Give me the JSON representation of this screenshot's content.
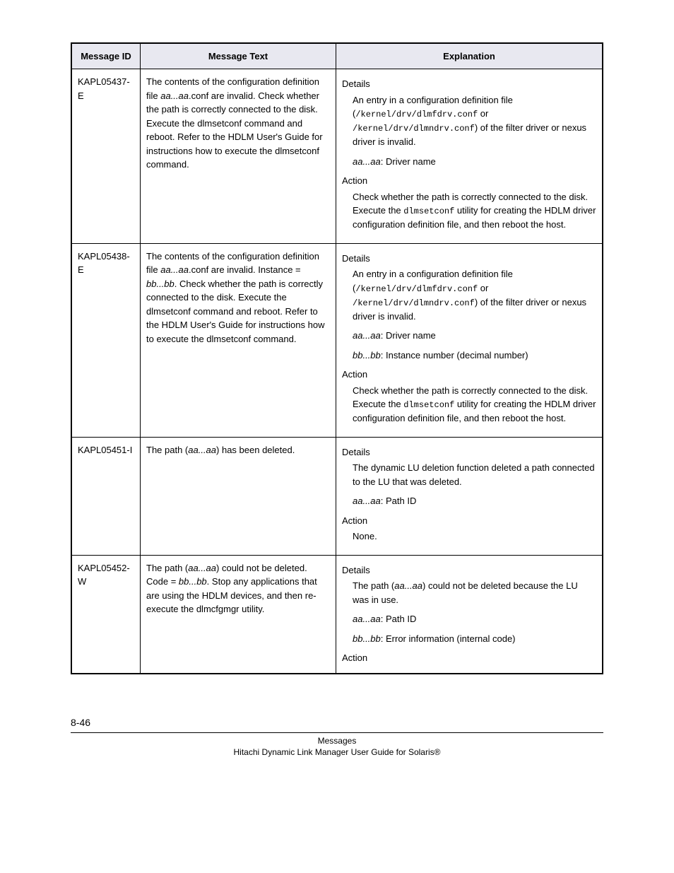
{
  "headers": {
    "id": "Message ID",
    "text": "Message Text",
    "exp": "Explanation"
  },
  "rows": [
    {
      "id": "KAPL05437-E",
      "text1": "The contents of the configuration definition file ",
      "text_ital1": "aa...aa",
      "text2": ".conf are invalid. Check whether the path is correctly connected to the disk. Execute the dlmsetconf command and reboot. Refer to the HDLM User's Guide for instructions how to execute the dlmsetconf command.",
      "d_label": "Details",
      "d_1a": "An entry in a configuration definition file (",
      "d_1code1": "/kernel/drv/dlmfdrv.conf",
      "d_1b": " or ",
      "d_1code2": "/kernel/drv/dlmndrv.conf",
      "d_1c": ") of the filter driver or nexus driver is invalid.",
      "d_2ital": "aa...aa",
      "d_2": ": Driver name",
      "a_label": "Action",
      "a_1": "Check whether the path is correctly connected to the disk. Execute the ",
      "a_code": "dlmsetconf",
      "a_2": " utility for creating the HDLM driver configuration definition file, and then reboot the host."
    },
    {
      "id": "KAPL05438-E",
      "text1": "The contents of the configuration definition file ",
      "text_ital1": "aa...aa",
      "text2": ".conf are invalid. Instance = ",
      "text_ital2": "bb...bb",
      "text3": ". Check whether the path is correctly connected to the disk. Execute the dlmsetconf command and reboot. Refer to the HDLM User's Guide for instructions how to execute the dlmsetconf command.",
      "d_label": "Details",
      "d_1a": "An entry in a configuration definition file (",
      "d_1code1": "/kernel/drv/dlmfdrv.conf",
      "d_1b": " or ",
      "d_1code2": "/kernel/drv/dlmndrv.conf",
      "d_1c": ") of the filter driver or nexus driver is invalid.",
      "d_2ital": "aa...aa",
      "d_2": ": Driver name",
      "d_3ital": "bb...bb",
      "d_3": ": Instance number (decimal number)",
      "a_label": "Action",
      "a_1": "Check whether the path is correctly connected to the disk. Execute the ",
      "a_code": "dlmsetconf",
      "a_2": " utility for creating the HDLM driver configuration definition file, and then reboot the host."
    },
    {
      "id": "KAPL05451-I",
      "text1": "The path (",
      "text_ital1": "aa...aa",
      "text2": ") has been deleted.",
      "d_label": "Details",
      "d_1": "The dynamic LU deletion function deleted a path connected to the LU that was deleted.",
      "d_2ital": "aa...aa",
      "d_2": ": Path ID",
      "a_label": "Action",
      "a_1": "None."
    },
    {
      "id": "KAPL05452-W",
      "text1": "The path (",
      "text_ital1": "aa...aa",
      "text2": ") could not be deleted. Code = ",
      "text_ital2": "bb...bb",
      "text3": ". Stop any applications that are using the HDLM devices, and then re-execute the dlmcfgmgr utility.",
      "d_label": "Details",
      "d_1a": "The path (",
      "d_1ital": "aa...aa",
      "d_1b": ") could not be deleted because the LU was in use.",
      "d_2ital": "aa...aa",
      "d_2": ": Path ID",
      "d_3ital": "bb...bb",
      "d_3": ": Error information (internal code)",
      "a_label": "Action"
    }
  ],
  "footer": {
    "page": "8-46",
    "section": "Messages",
    "title": "Hitachi Dynamic Link Manager User Guide for Solaris®"
  }
}
